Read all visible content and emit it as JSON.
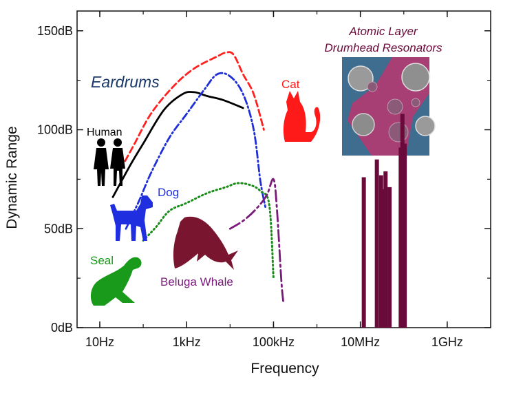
{
  "chart_data": {
    "type": "line",
    "xlabel": "Frequency",
    "ylabel": "Dynamic Range",
    "x_scale": "log",
    "xlim_hz": [
      3,
      10000000000
    ],
    "ylim_db": [
      0,
      160
    ],
    "x_ticks": [
      {
        "value": 10,
        "label": "10Hz"
      },
      {
        "value": 1000,
        "label": "1kHz"
      },
      {
        "value": 100000,
        "label": "100kHz"
      },
      {
        "value": 10000000,
        "label": "10MHz"
      },
      {
        "value": 1000000000,
        "label": "1GHz"
      }
    ],
    "y_ticks": [
      {
        "value": 0,
        "label": "0dB"
      },
      {
        "value": 50,
        "label": "50dB"
      },
      {
        "value": 100,
        "label": "100dB"
      },
      {
        "value": 150,
        "label": "150dB"
      }
    ],
    "series": [
      {
        "name": "Human",
        "color": "#000000",
        "style": "solid",
        "points": [
          [
            20,
            66
          ],
          [
            50,
            82
          ],
          [
            100,
            93
          ],
          [
            300,
            110
          ],
          [
            800,
            118
          ],
          [
            1500,
            119
          ],
          [
            3000,
            117
          ],
          [
            7000,
            115
          ],
          [
            20000,
            111
          ]
        ]
      },
      {
        "name": "Cat",
        "color": "#ff2020",
        "style": "dashed",
        "points": [
          [
            30,
            80
          ],
          [
            60,
            92
          ],
          [
            150,
            108
          ],
          [
            500,
            122
          ],
          [
            1500,
            131
          ],
          [
            5000,
            137
          ],
          [
            8000,
            139
          ],
          [
            12000,
            138
          ],
          [
            20000,
            128
          ],
          [
            35000,
            118
          ],
          [
            60000,
            100
          ]
        ]
      },
      {
        "name": "Dog",
        "color": "#1f2fd8",
        "style": "dashdot",
        "points": [
          [
            40,
            50
          ],
          [
            80,
            64
          ],
          [
            150,
            78
          ],
          [
            400,
            96
          ],
          [
            1000,
            108
          ],
          [
            2500,
            120
          ],
          [
            5000,
            128
          ],
          [
            10000,
            127
          ],
          [
            20000,
            118
          ],
          [
            35000,
            100
          ],
          [
            50000,
            74
          ],
          [
            65000,
            61
          ]
        ]
      },
      {
        "name": "Seal",
        "color": "#1a8c1a",
        "style": "dotted",
        "points": [
          [
            100,
            44
          ],
          [
            200,
            51
          ],
          [
            400,
            59
          ],
          [
            1000,
            63
          ],
          [
            3000,
            68
          ],
          [
            8000,
            71
          ],
          [
            15000,
            73
          ],
          [
            30000,
            72
          ],
          [
            50000,
            69
          ],
          [
            80000,
            62
          ],
          [
            100000,
            25
          ]
        ]
      },
      {
        "name": "Beluga Whale",
        "color": "#7a1a7a",
        "style": "dashdotlong",
        "points": [
          [
            10000,
            50
          ],
          [
            20000,
            54
          ],
          [
            40000,
            60
          ],
          [
            70000,
            67
          ],
          [
            100000,
            75
          ],
          [
            120000,
            60
          ],
          [
            150000,
            25
          ],
          [
            170000,
            12
          ]
        ]
      }
    ],
    "bars": {
      "color": "#6a0a3a",
      "items": [
        {
          "x": 12000000,
          "value": 76
        },
        {
          "x": 24000000,
          "value": 85
        },
        {
          "x": 30000000,
          "value": 77
        },
        {
          "x": 34000000,
          "value": 70
        },
        {
          "x": 38000000,
          "value": 79
        },
        {
          "x": 47000000,
          "value": 71
        },
        {
          "x": 85000000,
          "value": 91
        },
        {
          "x": 93000000,
          "value": 108
        },
        {
          "x": 105000000,
          "value": 93
        }
      ]
    }
  },
  "annotations": {
    "eardrums": "Eardrums",
    "human": "Human",
    "cat": "Cat",
    "dog": "Dog",
    "seal": "Seal",
    "beluga": "Beluga Whale",
    "resonators_line1": "Atomic Layer",
    "resonators_line2": "Drumhead Resonators"
  },
  "colors": {
    "eardrums": "#1a3a6b",
    "human_icon": "#000000",
    "cat_icon": "#ff1a1a",
    "dog_icon": "#1f2fe0",
    "seal_icon": "#1a9a1a",
    "whale_icon": "#7a1530",
    "resonator_text": "#6a0a3a",
    "inset_bg": "#3f6d8f",
    "inset_flake": "#a73f74"
  }
}
